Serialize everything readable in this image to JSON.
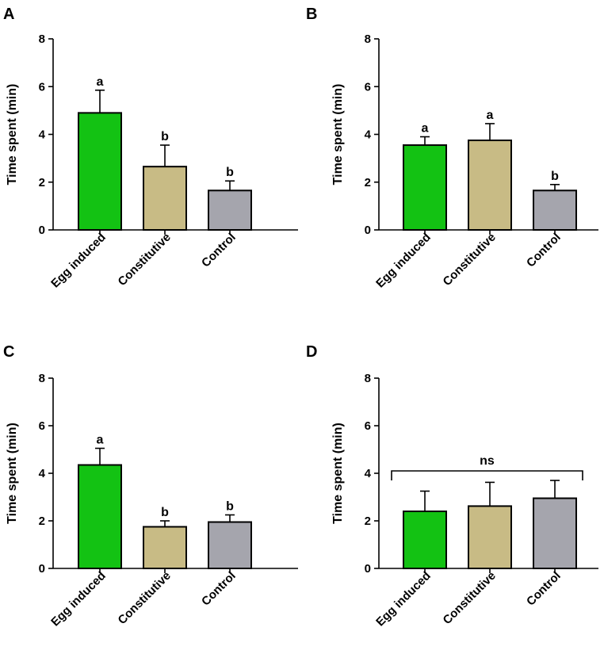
{
  "chart_data": [
    {
      "type": "bar",
      "panel": "A",
      "ylabel": "Time spent (min)",
      "ylim": [
        0,
        8
      ],
      "yticks": [
        "0",
        "2",
        "4",
        "6",
        "8"
      ],
      "categories": [
        "Egg induced",
        "Constitutive",
        "Control"
      ],
      "values": [
        4.9,
        2.65,
        1.65
      ],
      "errors": [
        0.95,
        0.9,
        0.4
      ],
      "letters": [
        "a",
        "b",
        "b"
      ],
      "colors": [
        "#13c213",
        "#c8bb85",
        "#a5a5ad"
      ]
    },
    {
      "type": "bar",
      "panel": "B",
      "ylabel": "Time spent (min)",
      "ylim": [
        0,
        8
      ],
      "yticks": [
        "0",
        "2",
        "4",
        "6",
        "8"
      ],
      "categories": [
        "Egg induced",
        "Constitutive",
        "Control"
      ],
      "values": [
        3.55,
        3.75,
        1.65
      ],
      "errors": [
        0.35,
        0.7,
        0.25
      ],
      "letters": [
        "a",
        "a",
        "b"
      ],
      "colors": [
        "#13c213",
        "#c8bb85",
        "#a5a5ad"
      ]
    },
    {
      "type": "bar",
      "panel": "C",
      "ylabel": "Time spent (min)",
      "ylim": [
        0,
        8
      ],
      "yticks": [
        "0",
        "2",
        "4",
        "6",
        "8"
      ],
      "categories": [
        "Egg induced",
        "Constitutive",
        "Control"
      ],
      "values": [
        4.35,
        1.75,
        1.95
      ],
      "errors": [
        0.7,
        0.25,
        0.3
      ],
      "letters": [
        "a",
        "b",
        "b"
      ],
      "colors": [
        "#13c213",
        "#c8bb85",
        "#a5a5ad"
      ]
    },
    {
      "type": "bar",
      "panel": "D",
      "ylabel": "Time spent (min)",
      "ylim": [
        0,
        8
      ],
      "yticks": [
        "0",
        "2",
        "4",
        "6",
        "8"
      ],
      "categories": [
        "Egg induced",
        "Constitutive",
        "Control"
      ],
      "values": [
        2.4,
        2.62,
        2.95
      ],
      "errors": [
        0.85,
        1.0,
        0.75
      ],
      "letters": [],
      "bracket_label": "ns",
      "bracket_y": 4.1,
      "colors": [
        "#13c213",
        "#c8bb85",
        "#a5a5ad"
      ]
    }
  ]
}
